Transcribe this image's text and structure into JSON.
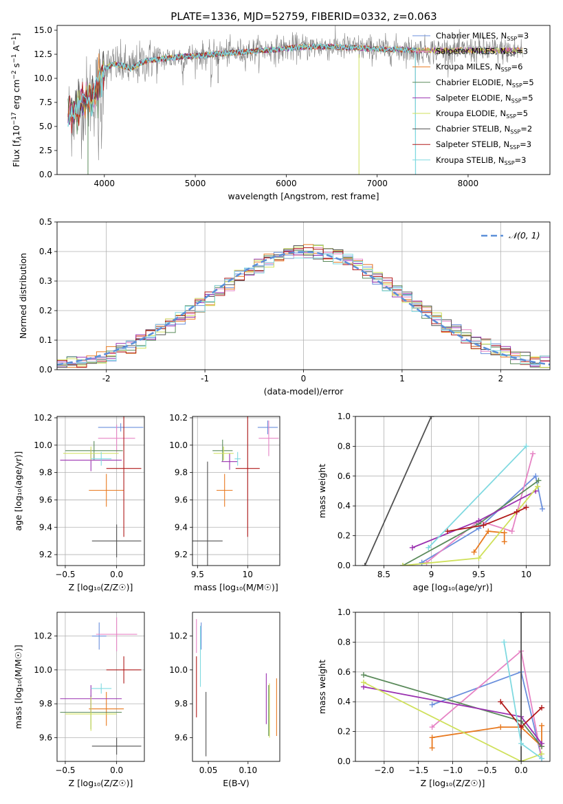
{
  "figure_title": "PLATE=1336, MJD=52759, FIBERID=0332, z=0.063",
  "colors": {
    "chabrier_miles": "#6a8fdc",
    "salpeter_miles": "#e683c4",
    "kroupa_miles": "#e8791f",
    "chabrier_elodie": "#5a8a5a",
    "salpeter_elodie": "#9a30b0",
    "kroupa_elodie": "#cfe05a",
    "chabrier_stelib": "#505050",
    "salpeter_stelib": "#b01818",
    "kroupa_stelib": "#7fd9e0",
    "data_spectrum": "#7f7f7f",
    "normal_curve": "#5b8fd8",
    "grid": "#b0b0b0"
  },
  "chart_data": [
    {
      "type": "line",
      "id": "spectrum",
      "xlabel": "wavelength [Angstrom, rest frame]",
      "ylabel": "Flux [f",
      "xlim": [
        3480,
        8900
      ],
      "ylim": [
        0,
        15.5
      ],
      "xticks": [
        4000,
        5000,
        6000,
        7000,
        8000
      ],
      "yticks": [
        0.0,
        2.5,
        5.0,
        7.5,
        10.0,
        12.5,
        15.0
      ],
      "continuum_x": [
        3600,
        3700,
        3800,
        3900,
        3950,
        4000,
        4100,
        4200,
        4300,
        4400,
        4500,
        4700,
        4900,
        5100,
        5300,
        5500,
        5700,
        5900,
        6100,
        6300,
        6500,
        6700,
        6900,
        7100,
        7300,
        7420
      ],
      "continuum_y": [
        6.0,
        7.0,
        7.8,
        8.4,
        9.6,
        11.0,
        11.5,
        11.3,
        11.0,
        11.6,
        11.9,
        12.1,
        12.3,
        12.4,
        12.6,
        12.7,
        12.9,
        13.0,
        13.2,
        13.3,
        13.3,
        13.2,
        13.1,
        13.0,
        13.0,
        12.9
      ],
      "legend_location": "right",
      "grid": false
    },
    {
      "type": "histogram",
      "id": "residuals",
      "xlabel": "(data-model)/error",
      "ylabel": "Normed distribution",
      "xlim": [
        -2.5,
        2.5
      ],
      "ylim": [
        0,
        0.5
      ],
      "xticks": [
        -2,
        -1,
        0,
        1,
        2
      ],
      "yticks": [
        0.0,
        0.1,
        0.2,
        0.3,
        0.4,
        0.5
      ],
      "bin_width": 0.1,
      "overlay_label": "𝒩(0, 1)",
      "legend_location": "upper right",
      "grid": true
    },
    {
      "type": "scatter",
      "id": "age_vs_z",
      "xlabel": "Z [log₁₀(Z/Z☉)]",
      "ylabel": "age  [log₁₀(age/yr)]",
      "xlim": [
        -0.58,
        0.27
      ],
      "ylim": [
        9.12,
        10.21
      ],
      "xticks": [
        -0.5,
        0.0
      ],
      "xticklabels": [
        "−0.5",
        "0.0"
      ],
      "yticks": [
        9.2,
        9.4,
        9.6,
        9.8,
        10.0,
        10.2
      ],
      "grid": true,
      "points": [
        {
          "model": "chabrier_miles",
          "x": 0.04,
          "xerr": 0.22,
          "y": 10.13,
          "yerr": 0.03
        },
        {
          "model": "salpeter_miles",
          "x": 0.0,
          "xerr": 0.18,
          "y": 10.05,
          "yerr": 0.1
        },
        {
          "model": "kroupa_miles",
          "x": -0.1,
          "xerr": 0.17,
          "y": 9.67,
          "yerr": 0.12
        },
        {
          "model": "chabrier_elodie",
          "x": -0.22,
          "xerr": 0.28,
          "y": 9.96,
          "yerr": 0.07
        },
        {
          "model": "salpeter_elodie",
          "x": -0.25,
          "xerr": 0.3,
          "y": 9.89,
          "yerr": 0.08
        },
        {
          "model": "kroupa_elodie",
          "x": -0.25,
          "xerr": 0.27,
          "y": 9.94,
          "yerr": 0.05
        },
        {
          "model": "chabrier_stelib",
          "x": 0.0,
          "xerr": 0.24,
          "y": 9.3,
          "yerr": 0.12
        },
        {
          "model": "salpeter_stelib",
          "x": 0.07,
          "xerr": 0.17,
          "y": 9.83,
          "yerr": 0.5
        },
        {
          "model": "kroupa_stelib",
          "x": -0.15,
          "xerr": 0.1,
          "y": 9.9,
          "yerr": 0.05
        }
      ]
    },
    {
      "type": "scatter",
      "id": "age_vs_mass",
      "xlabel": "mass [log₁₀(M/M☉)]",
      "ylabel": "",
      "xlim": [
        9.45,
        10.32
      ],
      "ylim": [
        9.12,
        10.21
      ],
      "xticks": [
        9.5,
        10.0
      ],
      "yticks": [
        9.2,
        9.4,
        9.6,
        9.8,
        10.0,
        10.2
      ],
      "grid": true,
      "points": [
        {
          "model": "chabrier_miles",
          "x": 10.2,
          "xerr": 0.1,
          "y": 10.13,
          "yerr": 0.05
        },
        {
          "model": "salpeter_miles",
          "x": 10.21,
          "xerr": 0.1,
          "y": 10.05,
          "yerr": 0.13
        },
        {
          "model": "kroupa_miles",
          "x": 9.77,
          "xerr": 0.08,
          "y": 9.67,
          "yerr": 0.12
        },
        {
          "model": "chabrier_elodie",
          "x": 9.75,
          "xerr": 0.1,
          "y": 9.96,
          "yerr": 0.08
        },
        {
          "model": "salpeter_elodie",
          "x": 9.82,
          "xerr": 0.08,
          "y": 9.88,
          "yerr": 0.06
        },
        {
          "model": "kroupa_elodie",
          "x": 9.76,
          "xerr": 0.1,
          "y": 9.94,
          "yerr": 0.05
        },
        {
          "model": "chabrier_stelib",
          "x": 9.6,
          "xerr": 0.15,
          "y": 9.3,
          "yerr": 0.58
        },
        {
          "model": "salpeter_stelib",
          "x": 10.0,
          "xerr": 0.12,
          "y": 9.83,
          "yerr": 0.5
        },
        {
          "model": "kroupa_stelib",
          "x": 9.9,
          "xerr": 0.03,
          "y": 9.9,
          "yerr": 0.05
        }
      ]
    },
    {
      "type": "line",
      "id": "mass_weight_vs_age",
      "xlabel": "age  [log₁₀(age/yr)]",
      "ylabel": "mass weight",
      "xlim": [
        8.2,
        10.25
      ],
      "ylim": [
        0,
        1.0
      ],
      "xticks": [
        8.5,
        9.0,
        9.5,
        10.0
      ],
      "yticks": [
        0.0,
        0.2,
        0.4,
        0.6,
        0.8,
        1.0
      ],
      "grid": true,
      "series": [
        {
          "model": "chabrier_miles",
          "x": [
            8.9,
            9.5,
            10.1,
            10.17
          ],
          "y": [
            0.02,
            0.25,
            0.6,
            0.38
          ]
        },
        {
          "model": "salpeter_miles",
          "x": [
            8.95,
            9.5,
            9.85,
            10.07
          ],
          "y": [
            0.02,
            0.3,
            0.23,
            0.75
          ]
        },
        {
          "model": "kroupa_miles",
          "x": [
            9.45,
            9.6,
            9.77,
            9.77
          ],
          "y": [
            0.09,
            0.23,
            0.22,
            0.16
          ]
        },
        {
          "model": "chabrier_elodie",
          "x": [
            8.7,
            9.5,
            10.13
          ],
          "y": [
            0.0,
            0.28,
            0.57
          ]
        },
        {
          "model": "salpeter_elodie",
          "x": [
            8.8,
            9.5,
            10.1
          ],
          "y": [
            0.12,
            0.3,
            0.5
          ]
        },
        {
          "model": "kroupa_elodie",
          "x": [
            8.7,
            9.5,
            10.12
          ],
          "y": [
            0.0,
            0.05,
            0.53
          ]
        },
        {
          "model": "chabrier_stelib",
          "x": [
            8.3,
            9.0
          ],
          "y": [
            0.0,
            1.0
          ]
        },
        {
          "model": "salpeter_stelib",
          "x": [
            9.17,
            9.55,
            9.9,
            10.0
          ],
          "y": [
            0.23,
            0.27,
            0.36,
            0.39
          ]
        },
        {
          "model": "kroupa_stelib",
          "x": [
            8.97,
            10.0
          ],
          "y": [
            0.12,
            0.8
          ]
        }
      ]
    },
    {
      "type": "scatter",
      "id": "mass_vs_z",
      "xlabel": "Z [log₁₀(Z/Z☉)]",
      "ylabel": "mass [log₁₀(M/M☉)]",
      "xlim": [
        -0.58,
        0.27
      ],
      "ylim": [
        9.46,
        10.34
      ],
      "xticks": [
        -0.5,
        0.0
      ],
      "xticklabels": [
        "−0.5",
        "0.0"
      ],
      "yticks": [
        9.6,
        9.8,
        10.0,
        10.2
      ],
      "grid": true,
      "points": [
        {
          "model": "chabrier_miles",
          "x": -0.17,
          "xerr": 0.07,
          "y": 10.2,
          "yerr": 0.08
        },
        {
          "model": "salpeter_miles",
          "x": 0.0,
          "xerr": 0.2,
          "y": 10.21,
          "yerr": 0.1
        },
        {
          "model": "kroupa_miles",
          "x": -0.1,
          "xerr": 0.17,
          "y": 9.77,
          "yerr": 0.1
        },
        {
          "model": "chabrier_elodie",
          "x": -0.25,
          "xerr": 0.3,
          "y": 9.75,
          "yerr": 0.1
        },
        {
          "model": "salpeter_elodie",
          "x": -0.25,
          "xerr": 0.3,
          "y": 9.83,
          "yerr": 0.08
        },
        {
          "model": "kroupa_elodie",
          "x": -0.25,
          "xerr": 0.25,
          "y": 9.74,
          "yerr": 0.1
        },
        {
          "model": "chabrier_stelib",
          "x": 0.0,
          "xerr": 0.24,
          "y": 9.55,
          "yerr": 0.05
        },
        {
          "model": "salpeter_stelib",
          "x": 0.07,
          "xerr": 0.17,
          "y": 10.0,
          "yerr": 0.08
        },
        {
          "model": "kroupa_stelib",
          "x": -0.15,
          "xerr": 0.1,
          "y": 9.89,
          "yerr": 0.03
        }
      ]
    },
    {
      "type": "scatter",
      "id": "mass_vs_ebv",
      "xlabel": "E(B-V)",
      "ylabel": "",
      "xlim": [
        0.03,
        0.14
      ],
      "ylim": [
        9.46,
        10.34
      ],
      "xticks": [
        0.05,
        0.1
      ],
      "xticklabels": [
        "0.05",
        "0.10"
      ],
      "yticks": [
        9.6,
        9.8,
        10.0,
        10.2
      ],
      "grid": false,
      "points": [
        {
          "model": "chabrier_miles",
          "x": 0.041,
          "y": 10.2,
          "yerr": 0.08
        },
        {
          "model": "salpeter_miles",
          "x": 0.035,
          "y": 10.2,
          "yerr": 0.1
        },
        {
          "model": "kroupa_miles",
          "x": 0.136,
          "y": 9.78,
          "yerr": 0.17
        },
        {
          "model": "chabrier_elodie",
          "x": 0.126,
          "y": 9.76,
          "yerr": 0.15
        },
        {
          "model": "salpeter_elodie",
          "x": 0.123,
          "y": 9.83,
          "yerr": 0.15
        },
        {
          "model": "kroupa_elodie",
          "x": 0.127,
          "y": 9.76,
          "yerr": 0.16
        },
        {
          "model": "chabrier_stelib",
          "x": 0.047,
          "y": 9.68,
          "yerr": 0.19
        },
        {
          "model": "salpeter_stelib",
          "x": 0.035,
          "y": 9.9,
          "yerr": 0.18
        },
        {
          "model": "kroupa_stelib",
          "x": 0.04,
          "y": 10.08,
          "yerr": 0.18
        }
      ]
    },
    {
      "type": "line",
      "id": "mass_weight_vs_z",
      "xlabel": "Z [log₁₀(Z/Z☉)]",
      "ylabel": "mass weight",
      "xlim": [
        -2.42,
        0.42
      ],
      "ylim": [
        0,
        1.0
      ],
      "xticks": [
        -2.0,
        -1.5,
        -1.0,
        -0.5,
        0.0
      ],
      "xticklabels": [
        "−2.0",
        "−1.5",
        "−1.0",
        "−0.5",
        "0.0"
      ],
      "yticks": [
        0.0,
        0.2,
        0.4,
        0.6,
        0.8,
        1.0
      ],
      "grid": true,
      "series": [
        {
          "model": "chabrier_miles",
          "x": [
            -1.3,
            0.0,
            0.3
          ],
          "y": [
            0.38,
            0.6,
            0.02
          ]
        },
        {
          "model": "salpeter_miles",
          "x": [
            -1.3,
            0.0,
            0.3
          ],
          "y": [
            0.23,
            0.74,
            0.02
          ]
        },
        {
          "model": "kroupa_miles",
          "x": [
            -1.3,
            -1.3,
            -0.3,
            0.0,
            0.3,
            0.3
          ],
          "y": [
            0.09,
            0.16,
            0.23,
            0.23,
            0.1,
            0.24
          ]
        },
        {
          "model": "chabrier_elodie",
          "x": [
            -2.3,
            0.0,
            0.3
          ],
          "y": [
            0.58,
            0.27,
            0.1
          ]
        },
        {
          "model": "salpeter_elodie",
          "x": [
            -2.3,
            0.0,
            0.3
          ],
          "y": [
            0.5,
            0.3,
            0.12
          ]
        },
        {
          "model": "kroupa_elodie",
          "x": [
            -2.3,
            0.0,
            0.3
          ],
          "y": [
            0.53,
            0.0,
            0.05
          ]
        },
        {
          "model": "chabrier_stelib",
          "x": [
            0.0,
            0.0
          ],
          "y": [
            0.0,
            1.0
          ]
        },
        {
          "model": "salpeter_stelib",
          "x": [
            -0.3,
            0.0,
            0.3
          ],
          "y": [
            0.4,
            0.23,
            0.36
          ]
        },
        {
          "model": "kroupa_stelib",
          "x": [
            -0.25,
            0.0,
            0.3
          ],
          "y": [
            0.8,
            0.12,
            0.02
          ]
        }
      ]
    }
  ],
  "legend": {
    "entries": [
      {
        "model": "chabrier_miles",
        "text": "Chabrier MILES, N",
        "n": "=3"
      },
      {
        "model": "salpeter_miles",
        "text": "Salpeter MILES, N",
        "n": "=3"
      },
      {
        "model": "kroupa_miles",
        "text": "Kroupa MILES, N",
        "n": "=6"
      },
      {
        "model": "chabrier_elodie",
        "text": "Chabrier ELODIE, N",
        "n": "=5"
      },
      {
        "model": "salpeter_elodie",
        "text": "Salpeter ELODIE, N",
        "n": "=5"
      },
      {
        "model": "kroupa_elodie",
        "text": "Kroupa ELODIE, N",
        "n": "=5"
      },
      {
        "model": "chabrier_stelib",
        "text": "Chabrier STELIB, N",
        "n": "=2"
      },
      {
        "model": "salpeter_stelib",
        "text": "Salpeter STELIB, N",
        "n": "=3"
      },
      {
        "model": "kroupa_stelib",
        "text": "Kroupa STELIB, N",
        "n": "=3"
      }
    ],
    "subscript": "SSP"
  }
}
